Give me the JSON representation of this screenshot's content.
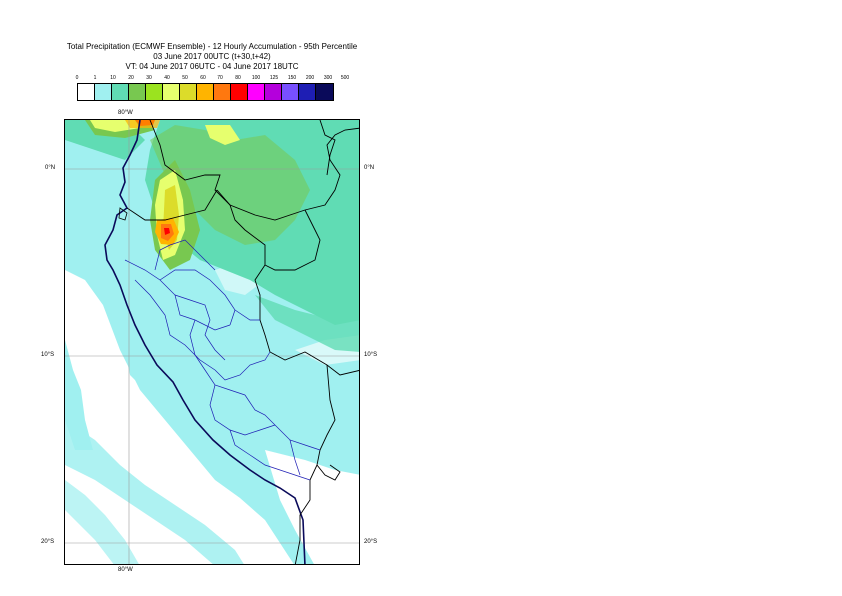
{
  "title": {
    "line1": "Total Precipitation (ECMWF Ensemble) - 12 Hourly Accumulation - 95th Percentile",
    "line2": "03 June 2017 00UTC (t+30,t+42)",
    "line3": "VT: 04 June 2017 06UTC - 04 June 2017 18UTC"
  },
  "legend": {
    "labels": [
      "0",
      "1",
      "10",
      "20",
      "30",
      "40",
      "50",
      "60",
      "70",
      "80",
      "100",
      "125",
      "150",
      "200",
      "300",
      "500"
    ],
    "colors": [
      "#ffffff",
      "#a0f0f0",
      "#60dcb4",
      "#78c850",
      "#9be31f",
      "#e6ff6e",
      "#dcdc2a",
      "#ffb400",
      "#ff780f",
      "#ff0000",
      "#ff00ff",
      "#b400dc",
      "#7850ff",
      "#1e1eb4",
      "#0a0a5a"
    ]
  },
  "axes": {
    "lat_ticks": [
      "0°N",
      "10°S",
      "20°S"
    ],
    "lon_ticks": [
      "80°W",
      "80°W"
    ]
  }
}
